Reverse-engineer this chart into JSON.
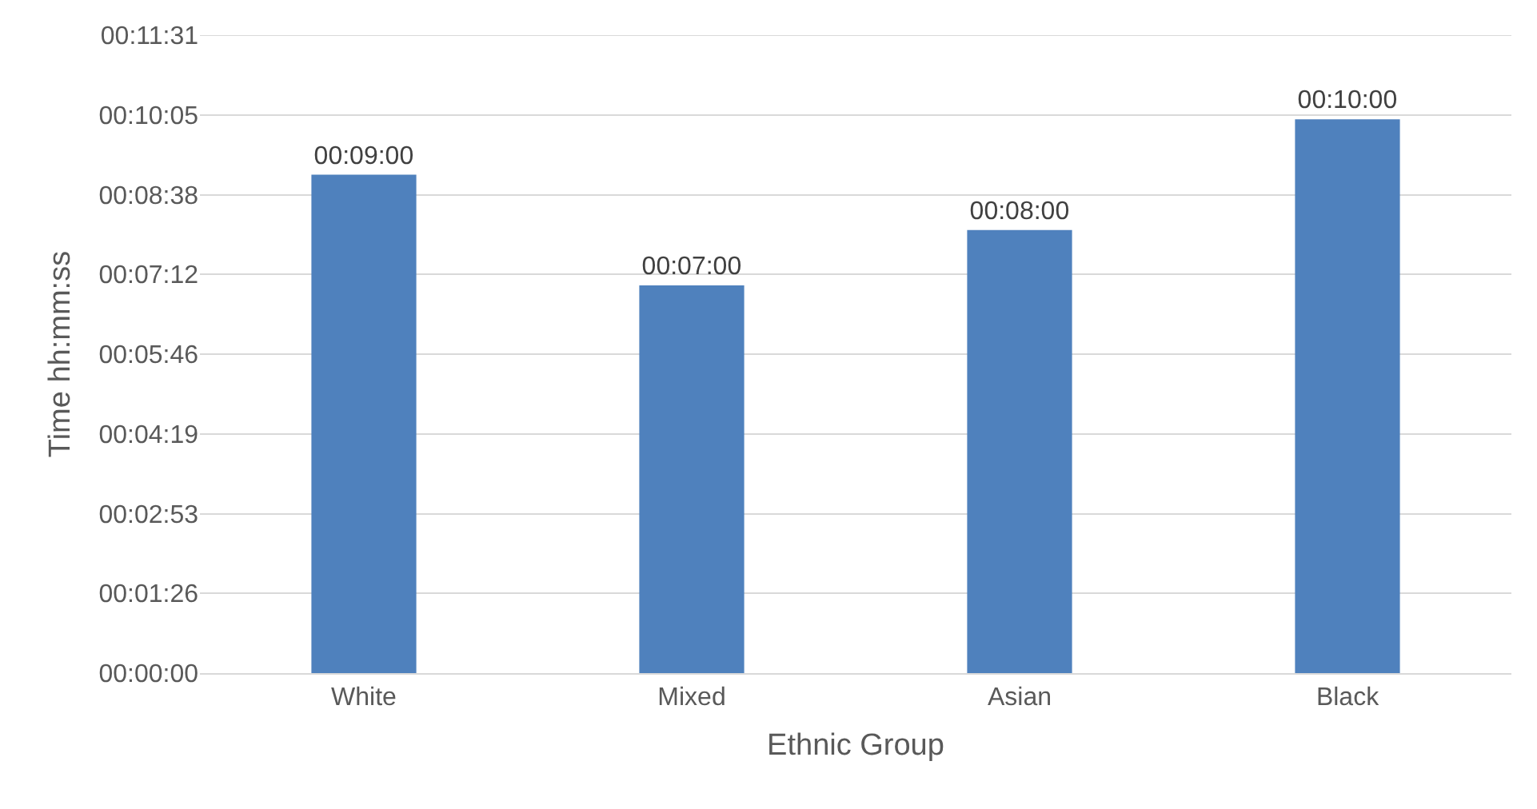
{
  "chart_data": {
    "type": "bar",
    "xlabel": "Ethnic Group",
    "ylabel": "Time hh:mm:ss",
    "categories": [
      "White",
      "Mixed",
      "Asian",
      "Black"
    ],
    "values": [
      540,
      420,
      480,
      600
    ],
    "color": "#4f81bd",
    "value_labels": [
      "00:09:00",
      "00:07:00",
      "00:08:00",
      "00:10:00"
    ],
    "ylim": [
      0,
      691.2
    ],
    "yticks": [
      {
        "value": 0,
        "label": "00:00:00"
      },
      {
        "value": 86.4,
        "label": "00:01:26"
      },
      {
        "value": 172.8,
        "label": "00:02:53"
      },
      {
        "value": 259.2,
        "label": "00:04:19"
      },
      {
        "value": 345.6,
        "label": "00:05:46"
      },
      {
        "value": 432,
        "label": "00:07:12"
      },
      {
        "value": 518.4,
        "label": "00:08:38"
      },
      {
        "value": 604.8,
        "label": "00:10:05"
      },
      {
        "value": 691.2,
        "label": "00:11:31"
      }
    ],
    "grid": "y"
  }
}
